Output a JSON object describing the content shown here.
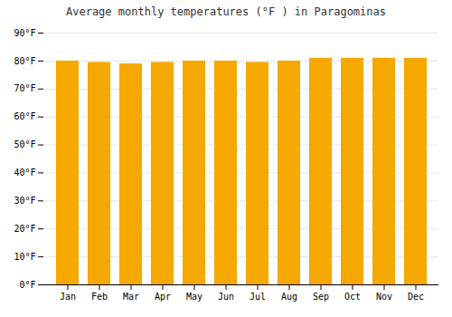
{
  "chart_data": {
    "type": "bar",
    "title": "Average monthly temperatures (°F ) in Paragominas",
    "categories": [
      "Jan",
      "Feb",
      "Mar",
      "Apr",
      "May",
      "Jun",
      "Jul",
      "Aug",
      "Sep",
      "Oct",
      "Nov",
      "Dec"
    ],
    "values": [
      80,
      79.5,
      79,
      79.5,
      80,
      80,
      79.5,
      80,
      81,
      81,
      81,
      81
    ],
    "color": "#F5A800",
    "ylim": [
      0,
      90
    ],
    "yticks": [
      {
        "value": 0,
        "label": "0°F"
      },
      {
        "value": 10,
        "label": "10°F"
      },
      {
        "value": 20,
        "label": "20°F"
      },
      {
        "value": 30,
        "label": "30°F"
      },
      {
        "value": 40,
        "label": "40°F"
      },
      {
        "value": 50,
        "label": "50°F"
      },
      {
        "value": 60,
        "label": "60°F"
      },
      {
        "value": 70,
        "label": "70°F"
      },
      {
        "value": 80,
        "label": "80°F"
      },
      {
        "value": 90,
        "label": "90°F"
      }
    ],
    "grid": true
  }
}
